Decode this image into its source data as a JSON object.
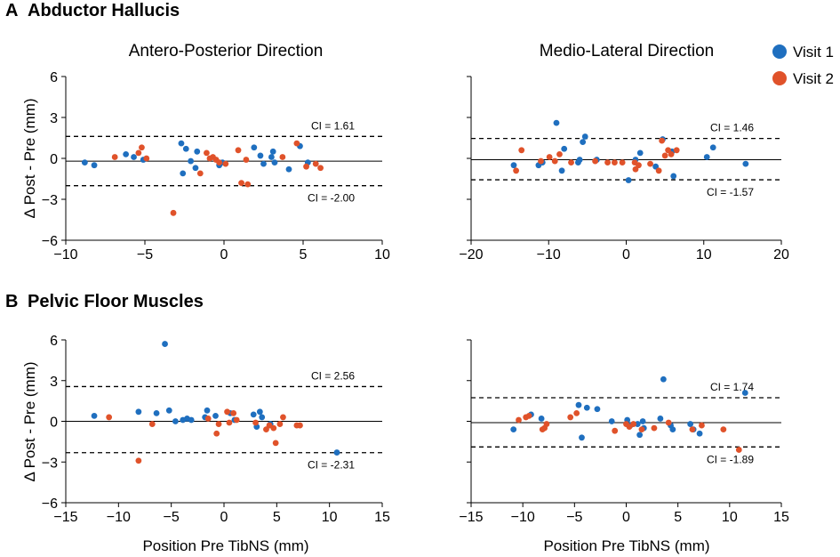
{
  "figure": {
    "panel_a": {
      "letter": "A",
      "title": "Abductor Hallucis"
    },
    "panel_b": {
      "letter": "B",
      "title": "Pelvic Floor Muscles"
    },
    "col_titles": [
      "Antero-Posterior Direction",
      "Medio-Lateral Direction"
    ],
    "y_label": "Δ Post - Pre (mm)",
    "x_label": "Position Pre TibNS (mm)",
    "legend": [
      {
        "label": "Visit 1",
        "color": "#1f6fbf"
      },
      {
        "label": "Visit 2",
        "color": "#e0522a"
      }
    ]
  },
  "colors": {
    "visit1": "#1f6fbf",
    "visit2": "#e0522a",
    "axis": "#000000"
  },
  "chart_data": [
    {
      "id": "ah_ap",
      "type": "scatter",
      "title": "Antero-Posterior Direction",
      "panel": "A",
      "xlabel": "",
      "ylabel": "Δ Post - Pre (mm)",
      "xlim": [
        -10,
        10
      ],
      "ylim": [
        -6,
        6
      ],
      "xticks": [
        -10,
        -5,
        0,
        5,
        10
      ],
      "yticks": [
        -6,
        -3,
        0,
        3,
        6
      ],
      "mean": -0.2,
      "ci_upper": {
        "value": 1.61,
        "label": "CI = 1.61"
      },
      "ci_lower": {
        "value": -2.0,
        "label": "CI = -2.00"
      },
      "series": [
        {
          "name": "Visit 1",
          "points": [
            [
              -8.8,
              -0.3
            ],
            [
              -8.2,
              -0.5
            ],
            [
              -6.2,
              0.3
            ],
            [
              -5.7,
              0.1
            ],
            [
              -5.1,
              -0.1
            ],
            [
              -2.7,
              1.1
            ],
            [
              -2.6,
              -1.1
            ],
            [
              -2.4,
              0.7
            ],
            [
              -2.1,
              -0.2
            ],
            [
              -1.8,
              -0.7
            ],
            [
              -1.7,
              0.5
            ],
            [
              -0.3,
              -0.5
            ],
            [
              -0.1,
              -0.3
            ],
            [
              1.9,
              0.8
            ],
            [
              2.3,
              0.2
            ],
            [
              2.5,
              -0.4
            ],
            [
              3.0,
              0.1
            ],
            [
              3.1,
              0.5
            ],
            [
              3.2,
              -0.3
            ],
            [
              4.1,
              -0.8
            ],
            [
              4.8,
              0.9
            ],
            [
              5.3,
              -0.3
            ]
          ]
        },
        {
          "name": "Visit 2",
          "points": [
            [
              -6.9,
              0.1
            ],
            [
              -5.4,
              0.4
            ],
            [
              -5.2,
              0.8
            ],
            [
              -4.9,
              0.0
            ],
            [
              -3.2,
              -4.0
            ],
            [
              -1.5,
              -1.1
            ],
            [
              -1.1,
              0.4
            ],
            [
              -0.9,
              0.0
            ],
            [
              -0.7,
              0.1
            ],
            [
              -0.5,
              -0.1
            ],
            [
              -0.3,
              -0.3
            ],
            [
              0.1,
              -0.4
            ],
            [
              0.9,
              0.6
            ],
            [
              1.1,
              -1.8
            ],
            [
              1.4,
              -0.1
            ],
            [
              1.5,
              -1.9
            ],
            [
              3.7,
              0.1
            ],
            [
              4.6,
              1.1
            ],
            [
              5.2,
              -0.6
            ],
            [
              5.8,
              -0.4
            ],
            [
              6.1,
              -0.7
            ]
          ]
        }
      ]
    },
    {
      "id": "ah_ml",
      "type": "scatter",
      "title": "Medio-Lateral Direction",
      "panel": "A",
      "xlabel": "",
      "ylabel": "",
      "xlim": [
        -20,
        20
      ],
      "ylim": [
        -6,
        6
      ],
      "xticks": [
        -20,
        -10,
        0,
        10,
        20
      ],
      "yticks": [
        -6,
        -3,
        0,
        3,
        6
      ],
      "mean": -0.1,
      "ci_upper": {
        "value": 1.46,
        "label": "CI = 1.46"
      },
      "ci_lower": {
        "value": -1.57,
        "label": "CI = -1.57"
      },
      "series": [
        {
          "name": "Visit 1",
          "points": [
            [
              -14.5,
              -0.5
            ],
            [
              -11.3,
              -0.5
            ],
            [
              -10.8,
              -0.3
            ],
            [
              -9.0,
              2.6
            ],
            [
              -8.3,
              -0.9
            ],
            [
              -8.0,
              0.7
            ],
            [
              -6.2,
              -0.3
            ],
            [
              -6.0,
              -0.1
            ],
            [
              -5.6,
              1.2
            ],
            [
              -5.3,
              1.6
            ],
            [
              -3.8,
              -0.1
            ],
            [
              0.3,
              -1.6
            ],
            [
              1.2,
              -0.1
            ],
            [
              1.8,
              0.4
            ],
            [
              3.8,
              -0.6
            ],
            [
              4.7,
              1.4
            ],
            [
              5.9,
              0.5
            ],
            [
              6.1,
              -1.3
            ],
            [
              10.4,
              0.1
            ],
            [
              11.2,
              0.8
            ],
            [
              15.4,
              -0.4
            ]
          ]
        },
        {
          "name": "Visit 2",
          "points": [
            [
              -14.2,
              -0.9
            ],
            [
              -13.5,
              0.6
            ],
            [
              -11.0,
              -0.2
            ],
            [
              -9.9,
              0.1
            ],
            [
              -9.2,
              -0.2
            ],
            [
              -8.6,
              0.3
            ],
            [
              -7.1,
              -0.3
            ],
            [
              -4.0,
              -0.2
            ],
            [
              -2.4,
              -0.3
            ],
            [
              -1.5,
              -0.3
            ],
            [
              -0.5,
              -0.3
            ],
            [
              1.1,
              -0.3
            ],
            [
              1.2,
              -0.8
            ],
            [
              1.6,
              -0.5
            ],
            [
              3.1,
              -0.4
            ],
            [
              4.2,
              -0.9
            ],
            [
              4.6,
              1.3
            ],
            [
              5.0,
              0.2
            ],
            [
              5.4,
              0.6
            ],
            [
              5.8,
              0.3
            ],
            [
              6.5,
              0.6
            ]
          ]
        }
      ]
    },
    {
      "id": "pf_ap",
      "type": "scatter",
      "title": "",
      "panel": "B",
      "xlabel": "Position Pre TibNS (mm)",
      "ylabel": "Δ Post - Pre (mm)",
      "xlim": [
        -15,
        15
      ],
      "ylim": [
        -6,
        6
      ],
      "xticks": [
        -15,
        -10,
        -5,
        0,
        5,
        10,
        15
      ],
      "yticks": [
        -6,
        -3,
        0,
        3,
        6
      ],
      "mean": 0.0,
      "ci_upper": {
        "value": 2.56,
        "label": "CI = 2.56"
      },
      "ci_lower": {
        "value": -2.31,
        "label": "CI = -2.31"
      },
      "series": [
        {
          "name": "Visit 1",
          "points": [
            [
              -12.3,
              0.4
            ],
            [
              -8.1,
              0.7
            ],
            [
              -6.4,
              0.6
            ],
            [
              -5.6,
              5.7
            ],
            [
              -5.2,
              0.8
            ],
            [
              -4.6,
              0.0
            ],
            [
              -3.9,
              0.1
            ],
            [
              -3.5,
              0.2
            ],
            [
              -3.1,
              0.1
            ],
            [
              -1.8,
              0.3
            ],
            [
              -1.6,
              0.8
            ],
            [
              -0.8,
              0.4
            ],
            [
              0.6,
              0.6
            ],
            [
              1.0,
              0.1
            ],
            [
              2.8,
              0.5
            ],
            [
              3.1,
              -0.4
            ],
            [
              3.4,
              0.7
            ],
            [
              3.6,
              0.3
            ],
            [
              4.4,
              -0.2
            ],
            [
              10.7,
              -2.3
            ]
          ]
        },
        {
          "name": "Visit 2",
          "points": [
            [
              -10.9,
              0.3
            ],
            [
              -8.1,
              -2.9
            ],
            [
              -6.8,
              -0.2
            ],
            [
              -1.5,
              0.2
            ],
            [
              -0.7,
              -0.9
            ],
            [
              -0.5,
              -0.2
            ],
            [
              0.3,
              0.7
            ],
            [
              0.5,
              -0.1
            ],
            [
              0.9,
              0.6
            ],
            [
              1.2,
              0.1
            ],
            [
              3.0,
              -0.1
            ],
            [
              4.0,
              -0.6
            ],
            [
              4.3,
              -0.3
            ],
            [
              4.7,
              -0.5
            ],
            [
              4.9,
              -1.6
            ],
            [
              5.3,
              -0.2
            ],
            [
              5.6,
              0.3
            ],
            [
              6.9,
              -0.3
            ],
            [
              7.2,
              -0.3
            ]
          ]
        }
      ]
    },
    {
      "id": "pf_ml",
      "type": "scatter",
      "title": "",
      "panel": "B",
      "xlabel": "Position Pre TibNS (mm)",
      "ylabel": "",
      "xlim": [
        -15,
        15
      ],
      "ylim": [
        -6,
        6
      ],
      "xticks": [
        -15,
        -10,
        -5,
        0,
        5,
        10,
        15
      ],
      "yticks": [
        -6,
        -3,
        0,
        3,
        6
      ],
      "mean": -0.1,
      "ci_upper": {
        "value": 1.74,
        "label": "CI = 1.74"
      },
      "ci_lower": {
        "value": -1.89,
        "label": "CI = -1.89"
      },
      "series": [
        {
          "name": "Visit 1",
          "points": [
            [
              -10.9,
              -0.6
            ],
            [
              -9.2,
              0.5
            ],
            [
              -8.2,
              0.2
            ],
            [
              -4.6,
              1.2
            ],
            [
              -4.3,
              -1.2
            ],
            [
              -3.8,
              1.0
            ],
            [
              -2.8,
              0.9
            ],
            [
              -1.4,
              0.0
            ],
            [
              0.1,
              0.1
            ],
            [
              0.4,
              -0.3
            ],
            [
              1.1,
              -0.2
            ],
            [
              1.3,
              -1.0
            ],
            [
              1.6,
              0.0
            ],
            [
              1.7,
              -0.5
            ],
            [
              3.3,
              0.2
            ],
            [
              3.6,
              3.1
            ],
            [
              4.3,
              -0.3
            ],
            [
              4.5,
              -0.6
            ],
            [
              6.2,
              -0.2
            ],
            [
              6.5,
              -0.6
            ],
            [
              7.1,
              -0.9
            ],
            [
              11.5,
              2.1
            ]
          ]
        },
        {
          "name": "Visit 2",
          "points": [
            [
              -10.4,
              0.1
            ],
            [
              -9.7,
              0.3
            ],
            [
              -9.4,
              0.4
            ],
            [
              -8.1,
              -0.6
            ],
            [
              -7.9,
              -0.5
            ],
            [
              -7.7,
              -0.2
            ],
            [
              -5.4,
              0.3
            ],
            [
              -4.8,
              0.6
            ],
            [
              -1.1,
              -0.7
            ],
            [
              0.0,
              -0.2
            ],
            [
              0.3,
              -0.4
            ],
            [
              0.7,
              -0.2
            ],
            [
              1.5,
              -0.6
            ],
            [
              2.7,
              -0.5
            ],
            [
              4.1,
              -0.1
            ],
            [
              6.4,
              -0.6
            ],
            [
              7.3,
              -0.3
            ],
            [
              9.4,
              -0.6
            ],
            [
              10.9,
              -2.1
            ]
          ]
        }
      ]
    }
  ]
}
